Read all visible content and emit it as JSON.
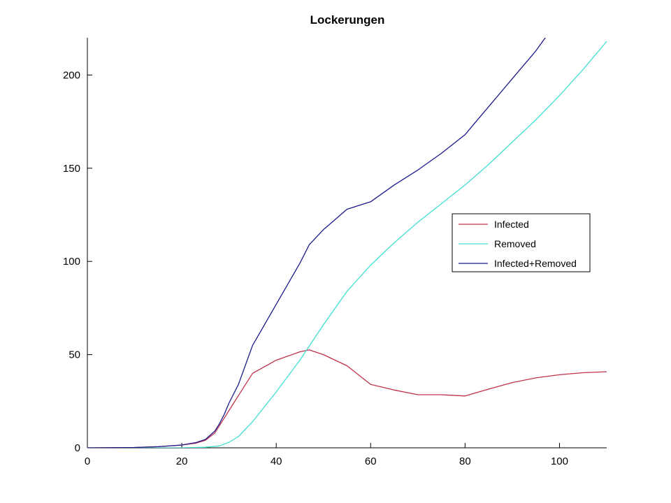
{
  "chart_data": {
    "type": "line",
    "title": "Lockerungen",
    "xlabel": "",
    "ylabel": "",
    "xlim": [
      0,
      110
    ],
    "ylim": [
      0,
      220
    ],
    "xticks": [
      0,
      20,
      40,
      60,
      80,
      100
    ],
    "yticks": [
      0,
      50,
      100,
      150,
      200
    ],
    "grid": false,
    "legend_position": "right",
    "series": [
      {
        "name": "Infected",
        "color": "#c0304a",
        "x": [
          0,
          10,
          15,
          20,
          23,
          25,
          27,
          28,
          29,
          30,
          32,
          35,
          40,
          45,
          47,
          50,
          55,
          60,
          65,
          70,
          75,
          80,
          85,
          90,
          95,
          100,
          105,
          110
        ],
        "y": [
          0,
          0.2,
          0.6,
          1.5,
          2.5,
          4,
          8,
          12,
          16,
          20,
          28,
          40,
          47,
          51.5,
          52.5,
          50,
          44,
          34,
          31,
          28.5,
          28.5,
          27.8,
          31.5,
          35,
          37.5,
          39.2,
          40.3,
          40.8
        ]
      },
      {
        "name": "Removed",
        "color": "#40e0d0",
        "x": [
          0,
          20,
          25,
          28,
          30,
          32,
          35,
          40,
          45,
          50,
          55,
          60,
          65,
          70,
          75,
          80,
          85,
          90,
          95,
          100,
          105,
          110
        ],
        "y": [
          0,
          0,
          0.3,
          1,
          3,
          6,
          14,
          30,
          47,
          66,
          84,
          98,
          110,
          121,
          131,
          141,
          152,
          164,
          176,
          189,
          203,
          218
        ]
      },
      {
        "name": "Infected+Removed",
        "color": "#1a1a8c",
        "x": [
          0,
          10,
          15,
          20,
          23,
          25,
          27,
          28,
          29,
          30,
          32,
          35,
          40,
          45,
          47,
          50,
          55,
          60,
          65,
          70,
          75,
          80,
          85,
          90,
          95,
          97
        ],
        "y": [
          0,
          0.2,
          0.6,
          1.5,
          2.8,
          4.5,
          9,
          13,
          18,
          24,
          34,
          55,
          77,
          99,
          109,
          117,
          128,
          132,
          141,
          149,
          158,
          168,
          183,
          198,
          213,
          220
        ]
      }
    ]
  }
}
